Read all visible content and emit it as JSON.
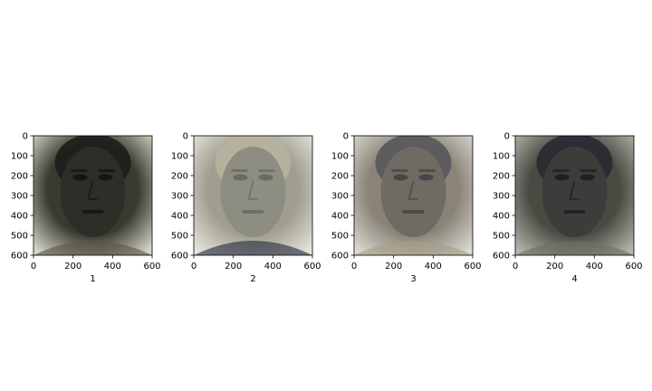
{
  "chart_data": [
    {
      "type": "image",
      "xlabel": "1",
      "xlim": [
        0,
        600
      ],
      "ylim": [
        600,
        0
      ],
      "xticks": [
        "0",
        "200",
        "400",
        "600"
      ],
      "yticks": [
        "0",
        "100",
        "200",
        "300",
        "400",
        "500",
        "600"
      ],
      "palette": {
        "bg": "#3a3b30",
        "edge": "#d7d8c9",
        "face": "#2c2e28",
        "hair": "#1b1b18",
        "feature": "#141512",
        "highlight": "#5a5547"
      }
    },
    {
      "type": "image",
      "xlabel": "2",
      "xlim": [
        0,
        600
      ],
      "ylim": [
        600,
        0
      ],
      "xticks": [
        "0",
        "200",
        "400",
        "600"
      ],
      "yticks": [
        "0",
        "100",
        "200",
        "300",
        "400",
        "500",
        "600"
      ],
      "palette": {
        "bg": "#a09e8f",
        "edge": "#e6e5dd",
        "face": "#8e8d82",
        "hair": "#b8b4a0",
        "feature": "#6a6a66",
        "highlight": "#22263b"
      }
    },
    {
      "type": "image",
      "xlabel": "3",
      "xlim": [
        0,
        600
      ],
      "ylim": [
        600,
        0
      ],
      "xticks": [
        "0",
        "200",
        "400",
        "600"
      ],
      "yticks": [
        "0",
        "100",
        "200",
        "300",
        "400",
        "500",
        "600"
      ],
      "palette": {
        "bg": "#8a8478",
        "edge": "#dcdad4",
        "face": "#6f6a62",
        "hair": "#54545a",
        "feature": "#4a4548",
        "highlight": "#a39c86"
      }
    },
    {
      "type": "image",
      "xlabel": "4",
      "xlim": [
        0,
        600
      ],
      "ylim": [
        600,
        0
      ],
      "xticks": [
        "0",
        "200",
        "400",
        "600"
      ],
      "yticks": [
        "0",
        "100",
        "200",
        "300",
        "400",
        "500",
        "600"
      ],
      "palette": {
        "bg": "#4a4a43",
        "edge": "#b6b5ab",
        "face": "#3c3d3a",
        "hair": "#262830",
        "feature": "#1e1f22",
        "highlight": "#6c6e64"
      }
    }
  ]
}
